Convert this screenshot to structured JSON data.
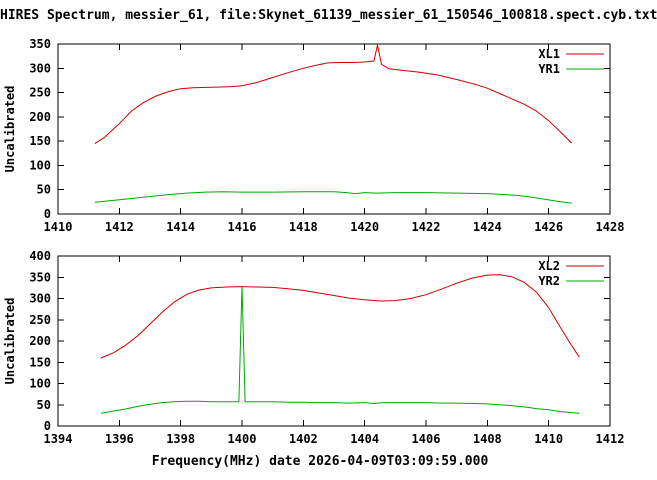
{
  "page": {
    "title": "HIRES Spectrum, messier_61, file:Skynet_61139_messier_61_150546_100818.spect.cyb.txt",
    "xlabel": "Frequency(MHz) date 2026-04-09T03:09:59.000"
  },
  "style": {
    "red": "#cc0000",
    "green": "#00aa00",
    "ylabel_color": "#007700",
    "axis_color": "#000000",
    "background": "#ffffff"
  },
  "chart_data": [
    {
      "type": "line",
      "ylabel": "Uncalibrated",
      "xlim": [
        1410,
        1428
      ],
      "ylim": [
        0,
        350
      ],
      "xtick": 2,
      "ytick": 50,
      "grid": false,
      "legend_position": "top-right",
      "legend": [
        "XL1",
        "YR1"
      ],
      "series": [
        {
          "name": "XL1",
          "color": "#cc0000",
          "points": [
            [
              1411.2,
              145
            ],
            [
              1411.5,
              157
            ],
            [
              1412,
              186
            ],
            [
              1412.4,
              212
            ],
            [
              1412.8,
              230
            ],
            [
              1413.2,
              243
            ],
            [
              1413.6,
              252
            ],
            [
              1414,
              258
            ],
            [
              1414.4,
              260
            ],
            [
              1415,
              261
            ],
            [
              1415.6,
              262
            ],
            [
              1416,
              264
            ],
            [
              1416.5,
              271
            ],
            [
              1417,
              281
            ],
            [
              1417.5,
              291
            ],
            [
              1418,
              300
            ],
            [
              1418.4,
              306
            ],
            [
              1418.8,
              311
            ],
            [
              1419.2,
              312
            ],
            [
              1419.6,
              312
            ],
            [
              1420,
              313
            ],
            [
              1420.3,
              315
            ],
            [
              1420.42,
              348
            ],
            [
              1420.55,
              308
            ],
            [
              1420.8,
              299
            ],
            [
              1421.2,
              296
            ],
            [
              1421.8,
              292
            ],
            [
              1422.4,
              286
            ],
            [
              1423,
              277
            ],
            [
              1423.6,
              267
            ],
            [
              1424,
              259
            ],
            [
              1424.4,
              248
            ],
            [
              1424.8,
              237
            ],
            [
              1425.2,
              226
            ],
            [
              1425.6,
              212
            ],
            [
              1426,
              192
            ],
            [
              1426.4,
              168
            ],
            [
              1426.75,
              146
            ]
          ]
        },
        {
          "name": "YR1",
          "color": "#00aa00",
          "points": [
            [
              1411.2,
              24
            ],
            [
              1411.8,
              28
            ],
            [
              1412.4,
              32
            ],
            [
              1413,
              36
            ],
            [
              1413.6,
              40
            ],
            [
              1414.2,
              43
            ],
            [
              1414.8,
              45
            ],
            [
              1415.4,
              46
            ],
            [
              1416,
              45
            ],
            [
              1417,
              45
            ],
            [
              1418,
              46
            ],
            [
              1419,
              46
            ],
            [
              1419.4,
              44
            ],
            [
              1419.7,
              42
            ],
            [
              1420,
              44
            ],
            [
              1420.4,
              43
            ],
            [
              1421,
              44
            ],
            [
              1422,
              44
            ],
            [
              1423,
              43
            ],
            [
              1424,
              42
            ],
            [
              1424.6,
              40
            ],
            [
              1425,
              38
            ],
            [
              1425.4,
              35
            ],
            [
              1425.8,
              31
            ],
            [
              1426.2,
              27
            ],
            [
              1426.75,
              22
            ]
          ]
        }
      ]
    },
    {
      "type": "line",
      "ylabel": "Uncalibrated",
      "xlim": [
        1394,
        1412
      ],
      "ylim": [
        0,
        400
      ],
      "xtick": 2,
      "ytick": 50,
      "grid": false,
      "legend_position": "top-right",
      "legend": [
        "XL2",
        "YR2"
      ],
      "series": [
        {
          "name": "XL2",
          "color": "#cc0000",
          "points": [
            [
              1395.4,
              160
            ],
            [
              1395.8,
              172
            ],
            [
              1396.2,
              190
            ],
            [
              1396.6,
              212
            ],
            [
              1397,
              240
            ],
            [
              1397.4,
              268
            ],
            [
              1397.8,
              292
            ],
            [
              1398.2,
              310
            ],
            [
              1398.6,
              320
            ],
            [
              1399,
              325
            ],
            [
              1399.5,
              327
            ],
            [
              1400,
              328
            ],
            [
              1400.5,
              327
            ],
            [
              1401,
              326
            ],
            [
              1401.5,
              323
            ],
            [
              1402,
              319
            ],
            [
              1402.5,
              313
            ],
            [
              1403,
              307
            ],
            [
              1403.5,
              301
            ],
            [
              1404,
              297
            ],
            [
              1404.5,
              294
            ],
            [
              1405,
              295
            ],
            [
              1405.5,
              300
            ],
            [
              1406,
              309
            ],
            [
              1406.5,
              322
            ],
            [
              1407,
              336
            ],
            [
              1407.5,
              348
            ],
            [
              1408,
              355
            ],
            [
              1408.4,
              356
            ],
            [
              1408.8,
              351
            ],
            [
              1409.2,
              338
            ],
            [
              1409.6,
              315
            ],
            [
              1410,
              278
            ],
            [
              1410.4,
              230
            ],
            [
              1410.7,
              195
            ],
            [
              1411,
              162
            ]
          ]
        },
        {
          "name": "YR2",
          "color": "#00aa00",
          "points": [
            [
              1395.4,
              30
            ],
            [
              1395.8,
              35
            ],
            [
              1396.2,
              40
            ],
            [
              1396.6,
              46
            ],
            [
              1397,
              51
            ],
            [
              1397.4,
              55
            ],
            [
              1397.8,
              57
            ],
            [
              1398.2,
              58
            ],
            [
              1398.6,
              58
            ],
            [
              1399,
              57
            ],
            [
              1399.5,
              57
            ],
            [
              1399.9,
              57
            ],
            [
              1399.95,
              200
            ],
            [
              1400,
              330
            ],
            [
              1400.05,
              200
            ],
            [
              1400.1,
              57
            ],
            [
              1400.5,
              57
            ],
            [
              1401,
              57
            ],
            [
              1401.5,
              56
            ],
            [
              1402,
              56
            ],
            [
              1402.5,
              55
            ],
            [
              1403,
              55
            ],
            [
              1403.5,
              54
            ],
            [
              1404,
              55
            ],
            [
              1404.3,
              53
            ],
            [
              1404.6,
              55
            ],
            [
              1405,
              55
            ],
            [
              1405.5,
              55
            ],
            [
              1406,
              55
            ],
            [
              1406.5,
              54
            ],
            [
              1407,
              54
            ],
            [
              1407.5,
              53
            ],
            [
              1408,
              52
            ],
            [
              1408.4,
              50
            ],
            [
              1408.8,
              48
            ],
            [
              1409.2,
              45
            ],
            [
              1409.6,
              41
            ],
            [
              1410,
              38
            ],
            [
              1410.4,
              34
            ],
            [
              1410.8,
              31
            ],
            [
              1411,
              30
            ]
          ]
        }
      ]
    }
  ]
}
